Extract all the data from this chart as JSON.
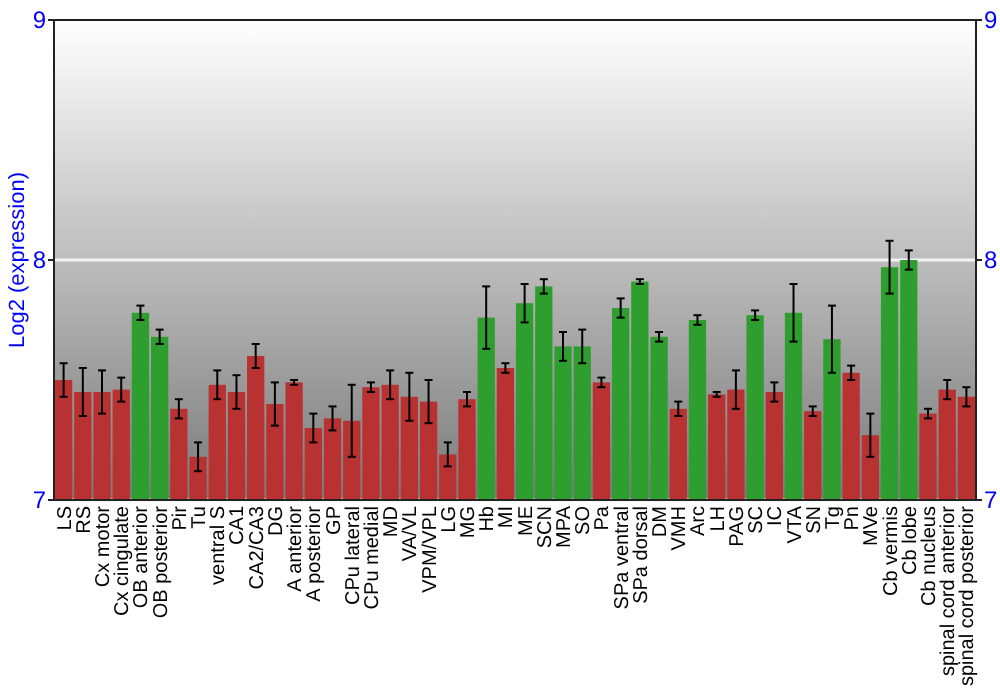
{
  "chart_data": {
    "type": "bar",
    "ylabel": "Log2 (expression)",
    "categories": [
      "LS",
      "RS",
      "Cx motor",
      "Cx cingulate",
      "OB anterior",
      "OB posterior",
      "Pir",
      "Tu",
      "ventral S",
      "CA1",
      "CA2/CA3",
      "DG",
      "A anterior",
      "A posterior",
      "GP",
      "CPu lateral",
      "CPu medial",
      "MD",
      "VA/VL",
      "VPM/VPL",
      "LG",
      "MG",
      "Hb",
      "MI",
      "ME",
      "SCN",
      "MPA",
      "SO",
      "Pa",
      "SPa ventral",
      "SPa dorsal",
      "DM",
      "VMH",
      "Arc",
      "LH",
      "PAG",
      "SC",
      "IC",
      "VTA",
      "SN",
      "Tg",
      "Pn",
      "MVe",
      "Cb vermis",
      "Cb lobe",
      "Cb nucleus",
      "spinal cord anterior",
      "spinal cord posterior"
    ],
    "values": [
      7.5,
      7.45,
      7.45,
      7.46,
      7.78,
      7.68,
      7.38,
      7.18,
      7.48,
      7.45,
      7.6,
      7.4,
      7.49,
      7.3,
      7.34,
      7.33,
      7.47,
      7.48,
      7.43,
      7.41,
      7.19,
      7.42,
      7.76,
      7.55,
      7.82,
      7.89,
      7.64,
      7.64,
      7.49,
      7.8,
      7.91,
      7.68,
      7.38,
      7.75,
      7.44,
      7.46,
      7.77,
      7.45,
      7.78,
      7.37,
      7.67,
      7.53,
      7.27,
      7.97,
      8.0,
      7.36,
      7.46,
      7.43
    ],
    "errors": [
      0.07,
      0.1,
      0.09,
      0.05,
      0.03,
      0.03,
      0.04,
      0.06,
      0.06,
      0.07,
      0.05,
      0.09,
      0.01,
      0.06,
      0.05,
      0.15,
      0.02,
      0.06,
      0.1,
      0.09,
      0.05,
      0.03,
      0.13,
      0.02,
      0.08,
      0.03,
      0.06,
      0.07,
      0.02,
      0.04,
      0.01,
      0.02,
      0.03,
      0.02,
      0.01,
      0.08,
      0.02,
      0.04,
      0.12,
      0.02,
      0.14,
      0.03,
      0.09,
      0.11,
      0.04,
      0.02,
      0.04,
      0.04
    ],
    "colors": [
      "#b83232",
      "#b83232",
      "#b83232",
      "#b83232",
      "#2e9e2e",
      "#2e9e2e",
      "#b83232",
      "#b83232",
      "#b83232",
      "#b83232",
      "#b83232",
      "#b83232",
      "#b83232",
      "#b83232",
      "#b83232",
      "#b83232",
      "#b83232",
      "#b83232",
      "#b83232",
      "#b83232",
      "#b83232",
      "#b83232",
      "#2e9e2e",
      "#b83232",
      "#2e9e2e",
      "#2e9e2e",
      "#2e9e2e",
      "#2e9e2e",
      "#b83232",
      "#2e9e2e",
      "#2e9e2e",
      "#2e9e2e",
      "#b83232",
      "#2e9e2e",
      "#b83232",
      "#b83232",
      "#2e9e2e",
      "#b83232",
      "#2e9e2e",
      "#b83232",
      "#2e9e2e",
      "#b83232",
      "#b83232",
      "#2e9e2e",
      "#2e9e2e",
      "#b83232",
      "#b83232",
      "#b83232"
    ],
    "ylim": [
      7,
      9
    ],
    "yticks": [
      7,
      8,
      9
    ],
    "y2lim": [
      7,
      9
    ],
    "y2ticks": [
      7,
      8,
      9
    ],
    "grid": "y"
  }
}
